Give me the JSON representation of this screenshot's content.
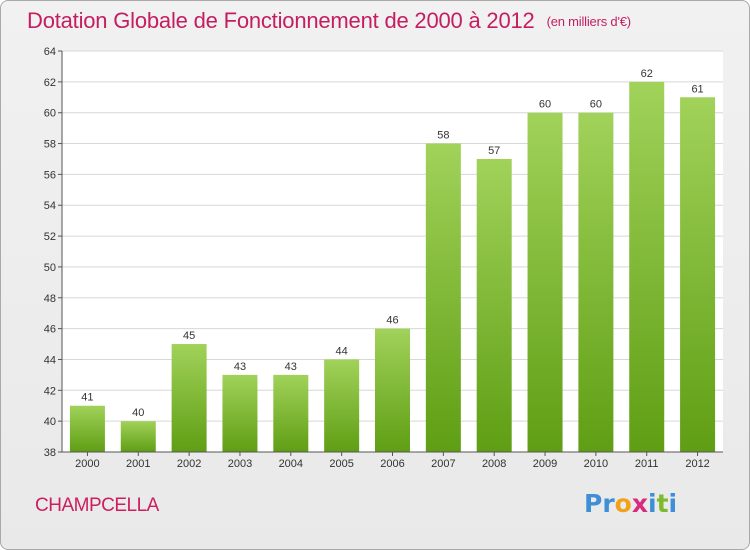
{
  "header": {
    "title": "Dotation Globale de Fonctionnement de 2000 à 2012",
    "unit": "(en milliers d'€)"
  },
  "footer": {
    "commune": "CHAMPCELLA",
    "logo_letters": [
      "P",
      "r",
      "o",
      "x",
      "i",
      "t",
      "i"
    ],
    "logo_colors": [
      "#3f8fd6",
      "#3f8fd6",
      "#f2a21a",
      "#d62b7e",
      "#3f8fd6",
      "#7dbb2c",
      "#3f8fd6"
    ]
  },
  "colors": {
    "title": "#c41e61",
    "bar_top": "#a1d25a",
    "bar_bottom": "#5f9e14",
    "axis": "#555555"
  },
  "chart_data": {
    "type": "bar",
    "categories": [
      "2000",
      "2001",
      "2002",
      "2003",
      "2004",
      "2005",
      "2006",
      "2007",
      "2008",
      "2009",
      "2010",
      "2011",
      "2012"
    ],
    "values": [
      41,
      40,
      45,
      43,
      43,
      44,
      46,
      58,
      57,
      60,
      60,
      62,
      61
    ],
    "ylim": [
      38,
      64
    ],
    "yticks": [
      38,
      40,
      42,
      44,
      46,
      48,
      50,
      52,
      54,
      56,
      58,
      60,
      62,
      64
    ],
    "grid": true,
    "data_labels": true
  }
}
